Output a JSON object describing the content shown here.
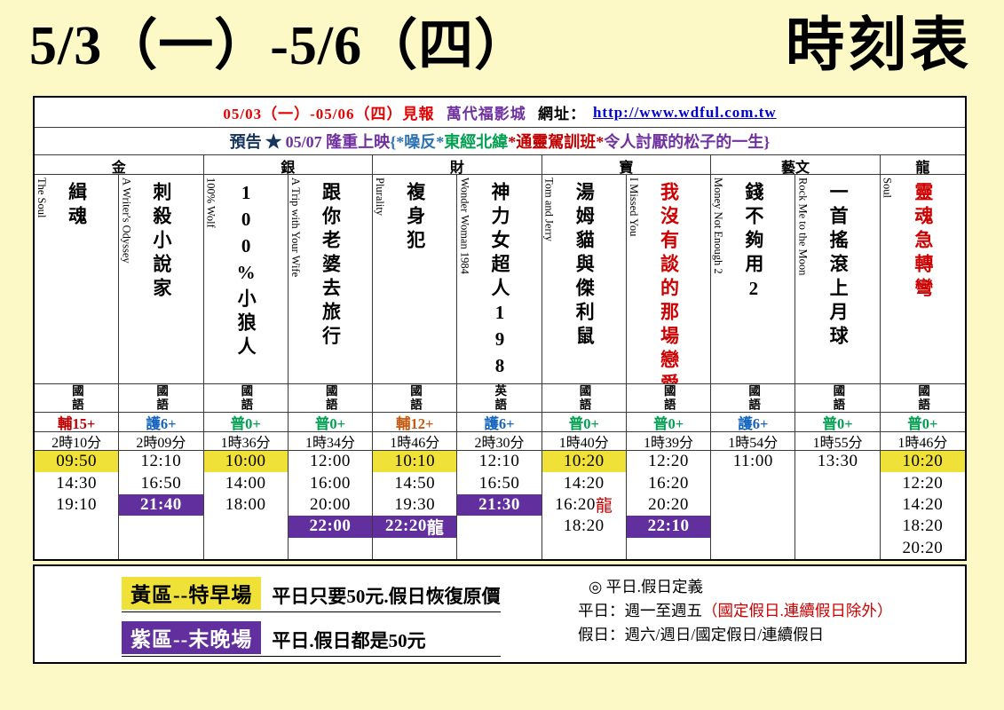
{
  "page": {
    "title_left": "5/3（一）-5/6（四）",
    "title_right": "時刻表"
  },
  "header": {
    "notice_segments": [
      {
        "text": "05/03（一）-05/06（四）見報",
        "color": "#E60000"
      },
      {
        "text": " 萬代福影城",
        "color": "#7030A0"
      },
      {
        "text": " 網址：",
        "color": "#000000"
      },
      {
        "text": "http://www.wdful.com.tw",
        "color": "#0000CC",
        "underline": true
      }
    ],
    "preview_segments": [
      {
        "text": "預告 ★ ",
        "color": "#17365D"
      },
      {
        "text": "05/07 隆重上映",
        "color": "#7030A0"
      },
      {
        "text": "{*噪反*",
        "color": "#2E74B5"
      },
      {
        "text": "東經北緯",
        "color": "#00A050"
      },
      {
        "text": "*通靈駕訓班*",
        "color": "#C00000"
      },
      {
        "text": "令人討厭的松子的一生}",
        "color": "#7030A0"
      }
    ]
  },
  "sections": [
    {
      "name": "金",
      "span": 2
    },
    {
      "name": "銀",
      "span": 2
    },
    {
      "name": "財",
      "span": 2
    },
    {
      "name": "寶",
      "span": 2
    },
    {
      "name": "藝文",
      "span": 2
    },
    {
      "name": "龍",
      "span": 1
    }
  ],
  "movies": [
    {
      "title_en": "The Soul",
      "title_zh": "緝魂",
      "title_color": "#000000",
      "language": "國語",
      "rating": "輔15+",
      "rating_color": "#C00000",
      "duration": "2時10分",
      "times": [
        {
          "t": "09:50",
          "zone": "yellow"
        },
        {
          "t": "14:30",
          "zone": "none"
        },
        {
          "t": "19:10",
          "zone": "none"
        }
      ]
    },
    {
      "title_en": "A Writer's Odyssey",
      "title_zh": "刺殺小說家",
      "title_color": "#000000",
      "language": "國語",
      "rating": "護6+",
      "rating_color": "#1565C0",
      "duration": "2時09分",
      "times": [
        {
          "t": "12:10",
          "zone": "none"
        },
        {
          "t": "16:50",
          "zone": "none"
        },
        {
          "t": "21:40",
          "zone": "purple"
        }
      ]
    },
    {
      "title_en": "100% Wolf",
      "title_zh": "100%小狼人",
      "title_color": "#000000",
      "language": "國語",
      "rating": "普0+",
      "rating_color": "#00A050",
      "duration": "1時36分",
      "times": [
        {
          "t": "10:00",
          "zone": "yellow"
        },
        {
          "t": "14:00",
          "zone": "none"
        },
        {
          "t": "18:00",
          "zone": "none"
        }
      ]
    },
    {
      "title_en": "A Trip with Your Wife",
      "title_zh": "跟你老婆去旅行",
      "title_color": "#000000",
      "language": "國語",
      "rating": "普0+",
      "rating_color": "#00A050",
      "duration": "1時34分",
      "times": [
        {
          "t": "12:00",
          "zone": "none"
        },
        {
          "t": "16:00",
          "zone": "none"
        },
        {
          "t": "20:00",
          "zone": "none"
        },
        {
          "t": "22:00",
          "zone": "purple"
        }
      ]
    },
    {
      "title_en": "Plurality",
      "title_zh": "複身犯",
      "title_color": "#000000",
      "language": "國語",
      "rating": "輔12+",
      "rating_color": "#C55A11",
      "duration": "1時46分",
      "times": [
        {
          "t": "10:10",
          "zone": "yellow"
        },
        {
          "t": "14:50",
          "zone": "none"
        },
        {
          "t": "19:30",
          "zone": "none"
        },
        {
          "t": "22:20",
          "suffix": "龍",
          "zone": "purple"
        }
      ]
    },
    {
      "title_en": "Wonder Woman 1984",
      "title_zh": "神力女超人1984",
      "title_color": "#000000",
      "language": "英語",
      "rating": "護6+",
      "rating_color": "#1565C0",
      "duration": "2時30分",
      "times": [
        {
          "t": "12:10",
          "zone": "none"
        },
        {
          "t": "16:50",
          "zone": "none"
        },
        {
          "t": "21:30",
          "zone": "purple"
        }
      ]
    },
    {
      "title_en": "Tom and Jerry",
      "title_zh": "湯姆貓與傑利鼠",
      "title_color": "#000000",
      "language": "國語",
      "rating": "普0+",
      "rating_color": "#00A050",
      "duration": "1時40分",
      "times": [
        {
          "t": "10:20",
          "zone": "yellow"
        },
        {
          "t": "14:20",
          "zone": "none"
        },
        {
          "t": "16:20",
          "suffix": "龍",
          "suffix_color": "#CC0000",
          "zone": "none"
        },
        {
          "t": "18:20",
          "zone": "none"
        }
      ]
    },
    {
      "title_en": "I Missed You",
      "title_zh": "我沒有談的那場戀愛",
      "title_color": "#CC0000",
      "language": "國語",
      "rating": "普0+",
      "rating_color": "#00A050",
      "duration": "1時39分",
      "times": [
        {
          "t": "12:20",
          "zone": "none"
        },
        {
          "t": "16:20",
          "zone": "none"
        },
        {
          "t": "20:20",
          "zone": "none"
        },
        {
          "t": "22:10",
          "zone": "purple"
        }
      ]
    },
    {
      "title_en": "Money Not Enough 2",
      "title_zh": "錢不夠用2",
      "title_color": "#000000",
      "language": "國語",
      "rating": "護6+",
      "rating_color": "#1565C0",
      "duration": "1時54分",
      "times": [
        {
          "t": "11:00",
          "zone": "none"
        }
      ]
    },
    {
      "title_en": "Rock Me to the Moon",
      "title_zh": "一首搖滾上月球",
      "title_color": "#000000",
      "language": "國語",
      "rating": "普0+",
      "rating_color": "#00A050",
      "duration": "1時55分",
      "times": [
        {
          "t": "13:30",
          "zone": "none"
        }
      ]
    },
    {
      "title_en": "Soul",
      "title_zh": "靈魂急轉彎",
      "title_color": "#CC0000",
      "language": "國語",
      "rating": "普0+",
      "rating_color": "#00A050",
      "duration": "1時46分",
      "times": [
        {
          "t": "10:20",
          "zone": "yellow"
        },
        {
          "t": "12:20",
          "zone": "none"
        },
        {
          "t": "14:20",
          "zone": "none"
        },
        {
          "t": "18:20",
          "zone": "none"
        },
        {
          "t": "20:20",
          "zone": "none"
        }
      ]
    }
  ],
  "legend": {
    "yellow_label": "黃區--特早場",
    "yellow_desc": "平日只要50元.假日恢復原價",
    "purple_label": "紫區--末晚場",
    "purple_desc": "平日.假日都是50元",
    "def_title": "◎ 平日.假日定義",
    "weekday_prefix": "平日：週一至週五",
    "weekday_red": "（國定假日.連續假日除外）",
    "holiday": "假日：週六/週日/國定假日/連續假日"
  },
  "colors": {
    "zone_yellow": "#F0E139",
    "zone_purple": "#62309E",
    "page_background": "#FCF9C6"
  }
}
